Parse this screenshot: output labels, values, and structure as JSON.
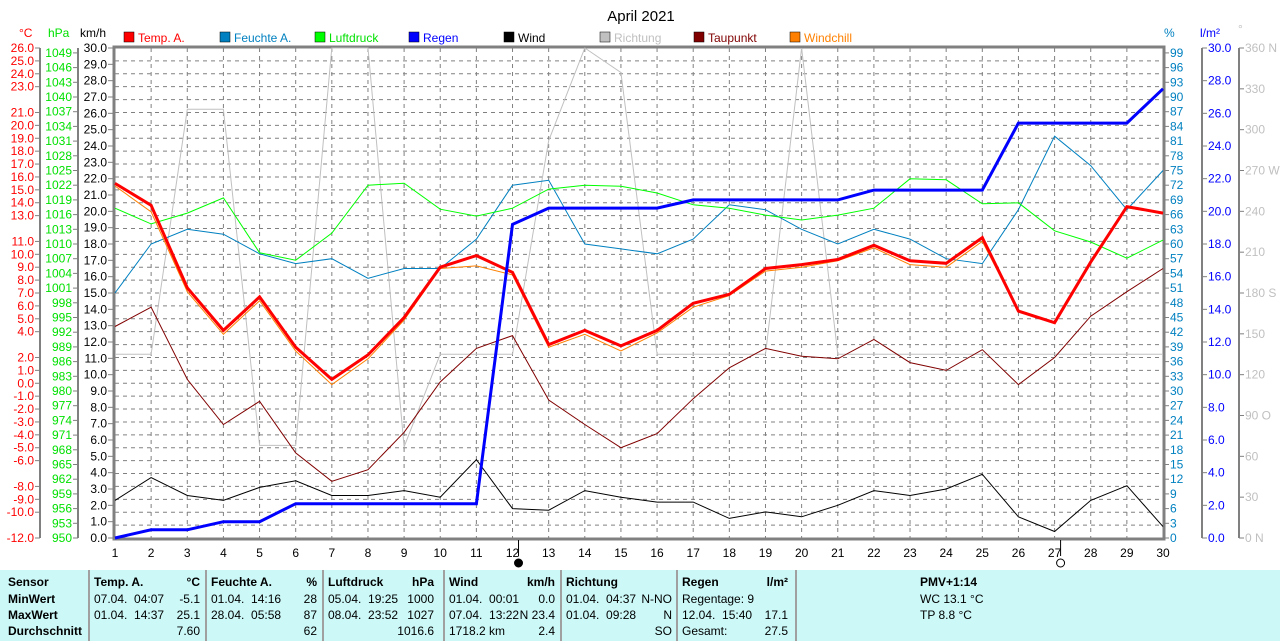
{
  "title": "April 2021",
  "units": {
    "temp": "°C",
    "pressure": "hPa",
    "wind": "km/h",
    "humidity": "%",
    "rain": "l/m²",
    "direction": "°"
  },
  "legend": [
    {
      "label": "Temp. A.",
      "color": "#ff0000"
    },
    {
      "label": "Feuchte A.",
      "color": "#0080c0"
    },
    {
      "label": "Luftdruck",
      "color": "#00ff00"
    },
    {
      "label": "Regen",
      "color": "#0000ff"
    },
    {
      "label": "Wind",
      "color": "#000000"
    },
    {
      "label": "Richtung",
      "color": "#c0c0c0"
    },
    {
      "label": "Taupunkt",
      "color": "#800000"
    },
    {
      "label": "Windchill",
      "color": "#ff8000"
    }
  ],
  "chart_data": {
    "type": "line",
    "title": "April 2021",
    "x": [
      1,
      2,
      3,
      4,
      5,
      6,
      7,
      8,
      9,
      10,
      11,
      12,
      13,
      14,
      15,
      16,
      17,
      18,
      19,
      20,
      21,
      22,
      23,
      24,
      25,
      26,
      27,
      28,
      29,
      30
    ],
    "xlim": [
      1,
      30
    ],
    "grid": true,
    "legend_position": "top",
    "axes": {
      "temp": {
        "unit": "°C",
        "range": [
          -12,
          26
        ],
        "ticks": [
          26,
          25,
          24,
          23,
          21,
          20,
          19,
          18,
          17,
          16,
          15,
          14,
          13,
          11,
          10,
          9,
          8,
          7,
          6,
          5,
          4,
          2,
          1,
          0,
          -1,
          -2,
          -3,
          -4,
          -5,
          -6,
          -8,
          -9,
          -10,
          -12
        ],
        "decimals": 1
      },
      "pressure": {
        "unit": "hPa",
        "range": [
          950,
          1050
        ],
        "tick_start": 950,
        "tick_end": 1049,
        "tick_step": 3,
        "decimals": 0
      },
      "wind": {
        "unit": "km/h",
        "range": [
          0,
          30
        ],
        "tick_start": 0,
        "tick_end": 30,
        "tick_step": 1,
        "decimals": 1
      },
      "humidity": {
        "unit": "%",
        "range": [
          0,
          100
        ],
        "tick_start": 0,
        "tick_end": 99,
        "tick_step": 3,
        "decimals": 0
      },
      "rain": {
        "unit": "l/m²",
        "range": [
          0,
          30
        ],
        "tick_start": 0,
        "tick_end": 30,
        "tick_step": 2,
        "decimals": 1
      },
      "direction": {
        "unit": "°",
        "range": [
          0,
          360
        ],
        "tick_start": 0,
        "tick_end": 360,
        "tick_step": 30,
        "decimals": 0,
        "tick_suffix": {
          "0": "N",
          "90": "O",
          "180": "S",
          "270": "W",
          "360": "N"
        }
      }
    },
    "series": [
      {
        "name": "Temp. A.",
        "axis": "temp",
        "color": "#ff0000",
        "values": [
          15.5,
          13.8,
          7.4,
          4.1,
          6.7,
          2.8,
          0.3,
          2.2,
          5.1,
          9.0,
          9.9,
          8.6,
          3.0,
          4.1,
          2.9,
          4.1,
          6.2,
          6.9,
          8.9,
          9.2,
          9.6,
          10.7,
          9.5,
          9.3,
          11.3,
          5.6,
          4.7,
          9.4,
          13.7,
          13.2
        ]
      },
      {
        "name": "Windchill",
        "axis": "temp",
        "color": "#ff8000",
        "values": [
          15.3,
          13.3,
          7.1,
          3.8,
          6.4,
          2.5,
          -0.1,
          1.9,
          4.9,
          8.9,
          9.1,
          8.4,
          2.8,
          3.8,
          2.5,
          3.9,
          5.9,
          6.8,
          8.7,
          9.0,
          9.5,
          10.5,
          9.2,
          9.0,
          11.0,
          5.6,
          4.7,
          9.4,
          13.6,
          13.2
        ]
      },
      {
        "name": "Taupunkt",
        "axis": "temp",
        "color": "#800000",
        "values": [
          4.4,
          5.9,
          0.3,
          -3.2,
          -1.4,
          -5.4,
          -7.6,
          -6.7,
          -3.8,
          0.1,
          2.7,
          3.7,
          -1.3,
          -3.2,
          -5.0,
          -3.9,
          -1.2,
          1.2,
          2.7,
          2.1,
          1.9,
          3.4,
          1.6,
          1.0,
          2.6,
          -0.1,
          2.0,
          5.2,
          7.1,
          8.9
        ]
      },
      {
        "name": "Feuchte A.",
        "axis": "humidity",
        "color": "#0080c0",
        "values": [
          50,
          60,
          63,
          62,
          58,
          56,
          57,
          53,
          55,
          55,
          61,
          72,
          73,
          60,
          59,
          58,
          61,
          68,
          67,
          63,
          60,
          63,
          61,
          57,
          56,
          67,
          82,
          76,
          67,
          75
        ]
      },
      {
        "name": "Luftdruck",
        "axis": "pressure",
        "color": "#00ff00",
        "values": [
          1017.3,
          1014.1,
          1016.3,
          1019.4,
          1008.2,
          1006.7,
          1012.2,
          1022.0,
          1022.4,
          1017.1,
          1015.7,
          1017.3,
          1021.2,
          1022.0,
          1021.8,
          1020.4,
          1018.0,
          1017.3,
          1015.9,
          1014.9,
          1015.9,
          1017.3,
          1023.3,
          1023.1,
          1018.2,
          1018.4,
          1012.7,
          1010.4,
          1007.1,
          1010.8
        ]
      },
      {
        "name": "Regen",
        "axis": "rain",
        "color": "#0000ff",
        "values": [
          0.0,
          0.5,
          0.5,
          1.0,
          1.0,
          2.1,
          2.1,
          2.1,
          2.1,
          2.1,
          2.1,
          19.2,
          20.2,
          20.2,
          20.2,
          20.2,
          20.7,
          20.7,
          20.7,
          20.7,
          20.7,
          21.3,
          21.3,
          21.3,
          21.3,
          25.4,
          25.4,
          25.4,
          25.4,
          27.5
        ]
      },
      {
        "name": "Wind",
        "axis": "wind",
        "color": "#000000",
        "values": [
          2.3,
          3.7,
          2.6,
          2.3,
          3.1,
          3.5,
          2.6,
          2.6,
          2.9,
          2.5,
          4.8,
          1.8,
          1.7,
          2.9,
          2.5,
          2.2,
          2.2,
          1.2,
          1.6,
          1.3,
          2.0,
          2.9,
          2.6,
          3.0,
          3.9,
          1.3,
          0.4,
          2.3,
          3.2,
          0.7
        ]
      },
      {
        "name": "Richtung",
        "axis": "direction",
        "color": "#c0c0c0",
        "values": [
          135,
          135,
          315,
          315,
          68,
          68,
          360,
          360,
          67,
          135,
          135,
          135,
          292,
          360,
          342,
          135,
          135,
          135,
          135,
          360,
          135,
          135,
          135,
          135,
          135,
          135,
          135,
          135,
          135,
          135
        ]
      }
    ],
    "moon_phases": [
      {
        "day": 12,
        "phase": "new-moon"
      },
      {
        "day": 27,
        "phase": "full-moon"
      }
    ]
  },
  "stats": {
    "row_labels": [
      "Sensor",
      "MinWert",
      "MaxWert",
      "Durchschnitt"
    ],
    "columns": [
      {
        "name": "Temp. A.",
        "unit": "°C",
        "rows": [
          [
            "07.04.  04:07",
            "-5.1"
          ],
          [
            "01.04.  14:37",
            "25.1"
          ],
          [
            "",
            "7.60"
          ]
        ]
      },
      {
        "name": "Feuchte A.",
        "unit": "%",
        "rows": [
          [
            "01.04.  14:16",
            "28"
          ],
          [
            "28.04.  05:58",
            "87"
          ],
          [
            "",
            "62"
          ]
        ]
      },
      {
        "name": "Luftdruck",
        "unit": "hPa",
        "rows": [
          [
            "05.04.  19:25",
            "1000"
          ],
          [
            "08.04.  23:52",
            "1027"
          ],
          [
            "",
            "1016.6"
          ]
        ]
      },
      {
        "name": "Wind",
        "unit": "km/h",
        "rows": [
          [
            "01.04.  00:01",
            "0.0"
          ],
          [
            "07.04.  13:22",
            "N 23.4"
          ],
          [
            "1718.2 km",
            "2.4"
          ]
        ]
      },
      {
        "name": "Richtung",
        "unit": "",
        "rows": [
          [
            "01.04.  04:37",
            "N-NO"
          ],
          [
            "01.04.  09:28",
            "N"
          ],
          [
            "",
            "SO"
          ]
        ]
      },
      {
        "name": "Regen",
        "unit": "l/m²",
        "rows": [
          [
            "Regentage: 9",
            ""
          ],
          [
            "12.04.  15:40",
            "17.1"
          ],
          [
            "Gesamt:",
            "27.5"
          ]
        ]
      }
    ],
    "pmv": {
      "title": "PMV+1:14",
      "wc": "WC 13.1 °C",
      "tp": "TP 8.8 °C"
    }
  }
}
